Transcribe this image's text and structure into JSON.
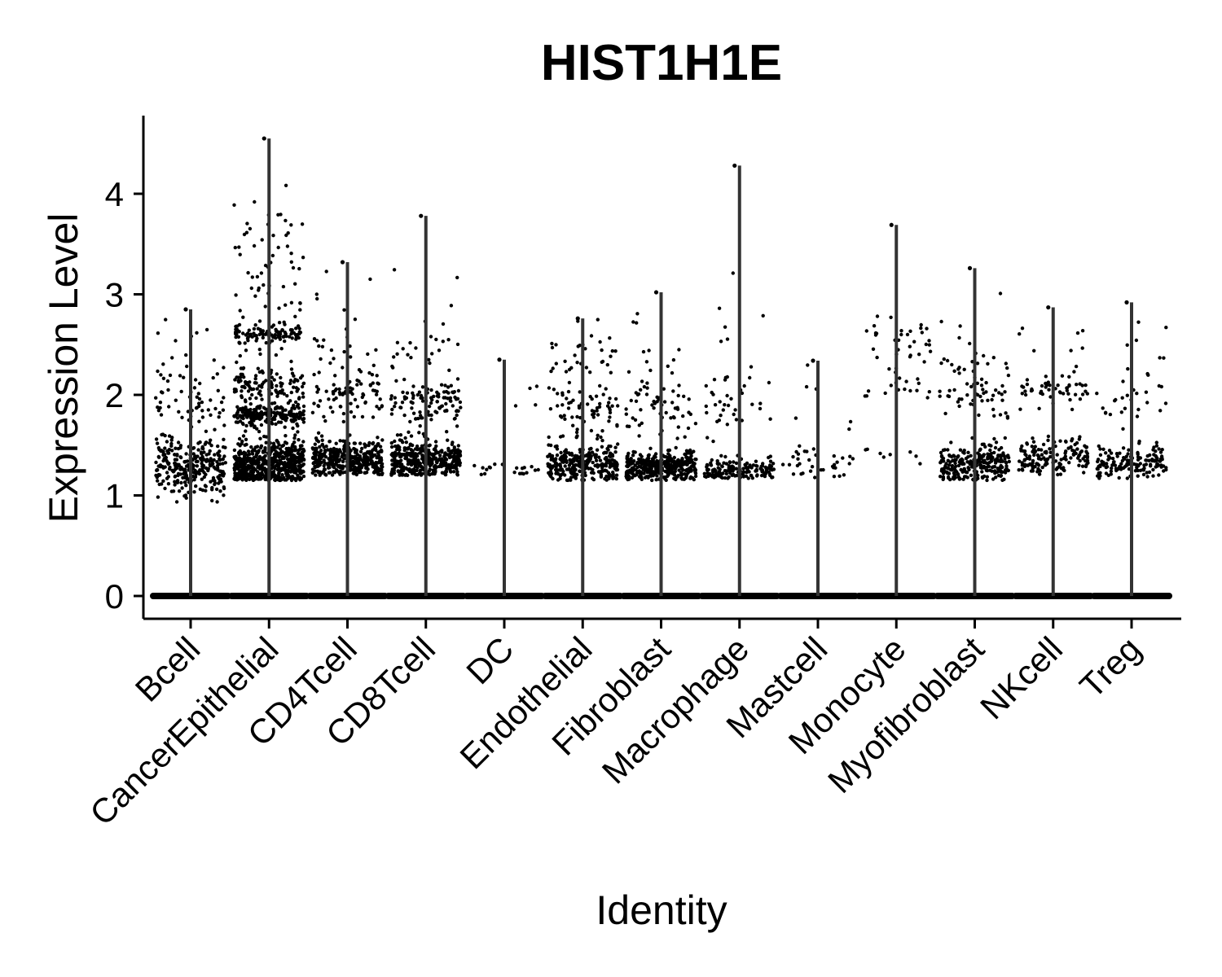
{
  "chart_data": {
    "type": "violin",
    "title": "HIST1H1E",
    "xlabel": "Identity",
    "ylabel": "Expression Level",
    "ylim": [
      -0.2,
      4.8
    ],
    "yticks": [
      0,
      1,
      2,
      3,
      4
    ],
    "point_color": "#000000",
    "violin_color": "#333333",
    "categories": [
      "Bcell",
      "CancerEpithelial",
      "CD4Tcell",
      "CD8Tcell",
      "DC",
      "Endothelial",
      "Fibroblast",
      "Macrophage",
      "Mastcell",
      "Monocyte",
      "Myofibroblast",
      "NKcell",
      "Treg"
    ],
    "groups": [
      {
        "name": "Bcell",
        "max": 2.85,
        "min_nonzero": 0.87,
        "clusters": [
          [
            1.3,
            0.15,
            300
          ],
          [
            1.95,
            0.12,
            40
          ],
          [
            2.3,
            0.35,
            25
          ]
        ]
      },
      {
        "name": "CancerEpithelial",
        "max": 4.55,
        "min_nonzero": 1.15,
        "clusters": [
          [
            1.3,
            0.12,
            600
          ],
          [
            1.8,
            0.05,
            200
          ],
          [
            2.1,
            0.1,
            120
          ],
          [
            2.6,
            0.05,
            100
          ],
          [
            3.2,
            0.4,
            70
          ]
        ]
      },
      {
        "name": "CD4Tcell",
        "max": 3.32,
        "min_nonzero": 1.2,
        "clusters": [
          [
            1.35,
            0.1,
            400
          ],
          [
            2.0,
            0.15,
            80
          ],
          [
            2.5,
            0.3,
            25
          ]
        ]
      },
      {
        "name": "CD8Tcell",
        "max": 3.78,
        "min_nonzero": 1.2,
        "clusters": [
          [
            1.35,
            0.1,
            400
          ],
          [
            1.95,
            0.12,
            100
          ],
          [
            2.5,
            0.3,
            30
          ]
        ]
      },
      {
        "name": "DC",
        "max": 2.35,
        "min_nonzero": 1.2,
        "clusters": [
          [
            1.25,
            0.04,
            20
          ],
          [
            2.1,
            0.2,
            4
          ]
        ]
      },
      {
        "name": "Endothelial",
        "max": 2.76,
        "min_nonzero": 1.15,
        "clusters": [
          [
            1.3,
            0.1,
            300
          ],
          [
            1.85,
            0.15,
            60
          ],
          [
            2.3,
            0.25,
            40
          ]
        ]
      },
      {
        "name": "Fibroblast",
        "max": 3.02,
        "min_nonzero": 1.15,
        "clusters": [
          [
            1.28,
            0.08,
            350
          ],
          [
            1.85,
            0.15,
            50
          ],
          [
            2.3,
            0.3,
            20
          ]
        ]
      },
      {
        "name": "Macrophage",
        "max": 4.28,
        "min_nonzero": 1.17,
        "clusters": [
          [
            1.25,
            0.06,
            150
          ],
          [
            1.85,
            0.2,
            30
          ],
          [
            2.5,
            0.6,
            15
          ]
        ]
      },
      {
        "name": "Mastcell",
        "max": 2.34,
        "min_nonzero": 1.17,
        "clusters": [
          [
            1.3,
            0.1,
            35
          ],
          [
            2.0,
            0.2,
            6
          ]
        ]
      },
      {
        "name": "Monocyte",
        "max": 3.69,
        "min_nonzero": 1.17,
        "clusters": [
          [
            2.55,
            0.1,
            30
          ],
          [
            2.1,
            0.1,
            20
          ],
          [
            1.4,
            0.08,
            8
          ]
        ]
      },
      {
        "name": "Myofibroblast",
        "max": 3.26,
        "min_nonzero": 1.15,
        "clusters": [
          [
            1.3,
            0.1,
            250
          ],
          [
            2.0,
            0.18,
            50
          ],
          [
            2.4,
            0.25,
            20
          ]
        ]
      },
      {
        "name": "NKcell",
        "max": 2.87,
        "min_nonzero": 1.2,
        "clusters": [
          [
            1.38,
            0.08,
            150
          ],
          [
            2.05,
            0.08,
            50
          ],
          [
            2.4,
            0.25,
            10
          ]
        ]
      },
      {
        "name": "Treg",
        "max": 2.92,
        "min_nonzero": 1.17,
        "clusters": [
          [
            1.32,
            0.08,
            150
          ],
          [
            1.9,
            0.15,
            25
          ],
          [
            2.4,
            0.25,
            8
          ]
        ]
      }
    ]
  }
}
